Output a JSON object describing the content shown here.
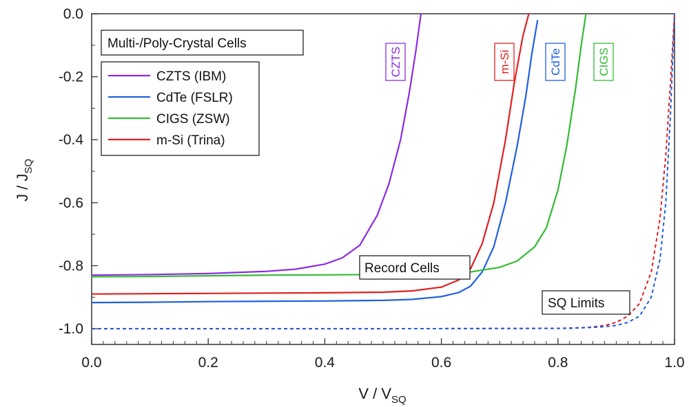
{
  "chart_data": {
    "type": "line",
    "xlabel": "V / V",
    "xlabel_sub": "SQ",
    "ylabel": "J / J",
    "ylabel_sub": "SQ",
    "xlim": [
      0.0,
      1.0
    ],
    "ylim": [
      -1.05,
      0.0
    ],
    "xticks": [
      "0.0",
      "0.2",
      "0.4",
      "0.6",
      "0.8",
      "1.0"
    ],
    "yticks": [
      "0.0",
      "-0.2",
      "-0.4",
      "-0.6",
      "-0.8",
      "-1.0"
    ],
    "grid": false,
    "legend_title": "Multi-/Poly-Crystal Cells",
    "legend_position": "top-left",
    "annotations": {
      "record_cells": "Record Cells",
      "sq_limits": "SQ Limits"
    },
    "series": [
      {
        "name": "CZTS (IBM)",
        "short_label": "CZTS",
        "color": "#8a2be2",
        "style": "solid",
        "x": [
          0.0,
          0.1,
          0.2,
          0.3,
          0.35,
          0.4,
          0.43,
          0.46,
          0.49,
          0.51,
          0.53,
          0.545,
          0.556,
          0.565
        ],
        "y": [
          -0.83,
          -0.828,
          -0.825,
          -0.818,
          -0.811,
          -0.795,
          -0.775,
          -0.735,
          -0.64,
          -0.54,
          -0.4,
          -0.25,
          -0.12,
          0.0
        ]
      },
      {
        "name": "CdTe (FSLR)",
        "short_label": "CdTe",
        "color": "#1f5fe0",
        "style": "solid",
        "x": [
          0.0,
          0.1,
          0.2,
          0.3,
          0.4,
          0.5,
          0.55,
          0.6,
          0.63,
          0.65,
          0.67,
          0.69,
          0.71,
          0.73,
          0.745,
          0.755,
          0.765
        ],
        "y": [
          -0.917,
          -0.916,
          -0.914,
          -0.913,
          -0.912,
          -0.91,
          -0.907,
          -0.898,
          -0.885,
          -0.865,
          -0.82,
          -0.74,
          -0.6,
          -0.42,
          -0.26,
          -0.13,
          -0.02
        ]
      },
      {
        "name": "CIGS (ZSW)",
        "short_label": "CIGS",
        "color": "#33bb33",
        "style": "solid",
        "x": [
          0.0,
          0.1,
          0.2,
          0.3,
          0.4,
          0.5,
          0.6,
          0.65,
          0.7,
          0.73,
          0.76,
          0.78,
          0.8,
          0.815,
          0.83,
          0.84,
          0.848
        ],
        "y": [
          -0.835,
          -0.834,
          -0.832,
          -0.83,
          -0.829,
          -0.828,
          -0.825,
          -0.82,
          -0.805,
          -0.785,
          -0.74,
          -0.68,
          -0.56,
          -0.42,
          -0.24,
          -0.1,
          0.0
        ]
      },
      {
        "name": "m-Si (Trina)",
        "short_label": "m-Si",
        "color": "#e02020",
        "style": "solid",
        "x": [
          0.0,
          0.1,
          0.2,
          0.3,
          0.4,
          0.5,
          0.55,
          0.6,
          0.63,
          0.65,
          0.67,
          0.69,
          0.71,
          0.725,
          0.74,
          0.75
        ],
        "y": [
          -0.89,
          -0.889,
          -0.888,
          -0.887,
          -0.886,
          -0.884,
          -0.88,
          -0.868,
          -0.845,
          -0.81,
          -0.73,
          -0.6,
          -0.4,
          -0.22,
          -0.07,
          0.0
        ]
      },
      {
        "name": "",
        "color": "#e02020",
        "style": "dashed",
        "x": [
          0.0,
          0.5,
          0.8,
          0.85,
          0.88,
          0.9,
          0.92,
          0.94,
          0.96,
          0.975,
          0.985,
          0.993,
          1.0
        ],
        "y": [
          -1.0,
          -1.0,
          -0.999,
          -0.996,
          -0.99,
          -0.98,
          -0.96,
          -0.92,
          -0.82,
          -0.65,
          -0.45,
          -0.22,
          0.0
        ]
      },
      {
        "name": "",
        "color": "#1f5fe0",
        "style": "dashed",
        "x": [
          0.0,
          0.5,
          0.82,
          0.87,
          0.9,
          0.92,
          0.94,
          0.96,
          0.975,
          0.985,
          0.993,
          1.0
        ],
        "y": [
          -1.0,
          -1.0,
          -0.999,
          -0.995,
          -0.99,
          -0.98,
          -0.96,
          -0.9,
          -0.78,
          -0.6,
          -0.32,
          0.0
        ]
      }
    ]
  }
}
